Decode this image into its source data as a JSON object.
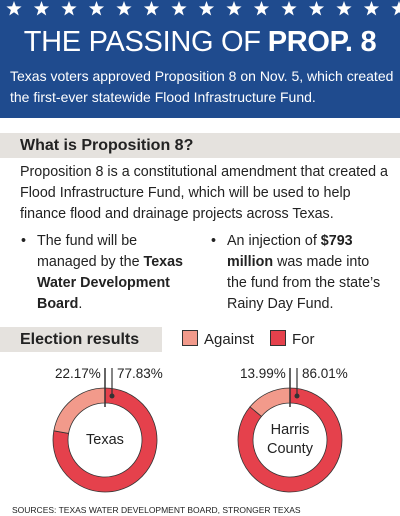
{
  "header": {
    "title_prefix": "THE PASSING OF",
    "title_bold": "PROP. 8",
    "subtitle": "Texas voters approved Proposition 8 on Nov. 5, which created the first-ever statewide Flood Infrastructure Fund."
  },
  "section": {
    "heading": "What is Proposition 8?",
    "body": "Proposition 8 is a constitutional amendment that created a Flood Infrastructure Fund, which will be used to help finance flood and drainage projects across Texas.",
    "bullets": [
      {
        "before": "The fund will be managed by the",
        "bold": "Texas Water Development Board",
        "after": "."
      },
      {
        "before": "An injection of",
        "bold": "$793 million",
        "after": "was made into the fund from the state’s Rainy Day Fund."
      }
    ]
  },
  "election_heading": "Election results",
  "chart_data": [
    {
      "type": "donut",
      "title": "Texas",
      "categories": [
        "Against",
        "For"
      ],
      "values": [
        22.17,
        77.83
      ],
      "value_labels": [
        "22.17%",
        "77.83%"
      ],
      "colors": [
        "#f29a8b",
        "#e5414c"
      ]
    },
    {
      "type": "donut",
      "title": "Harris County",
      "categories": [
        "Against",
        "For"
      ],
      "values": [
        13.99,
        86.01
      ],
      "value_labels": [
        "13.99%",
        "86.01%"
      ],
      "colors": [
        "#f29a8b",
        "#e5414c"
      ]
    }
  ],
  "sources": "SOURCES: TEXAS WATER DEVELOPMENT BOARD, STRONGER TEXAS"
}
